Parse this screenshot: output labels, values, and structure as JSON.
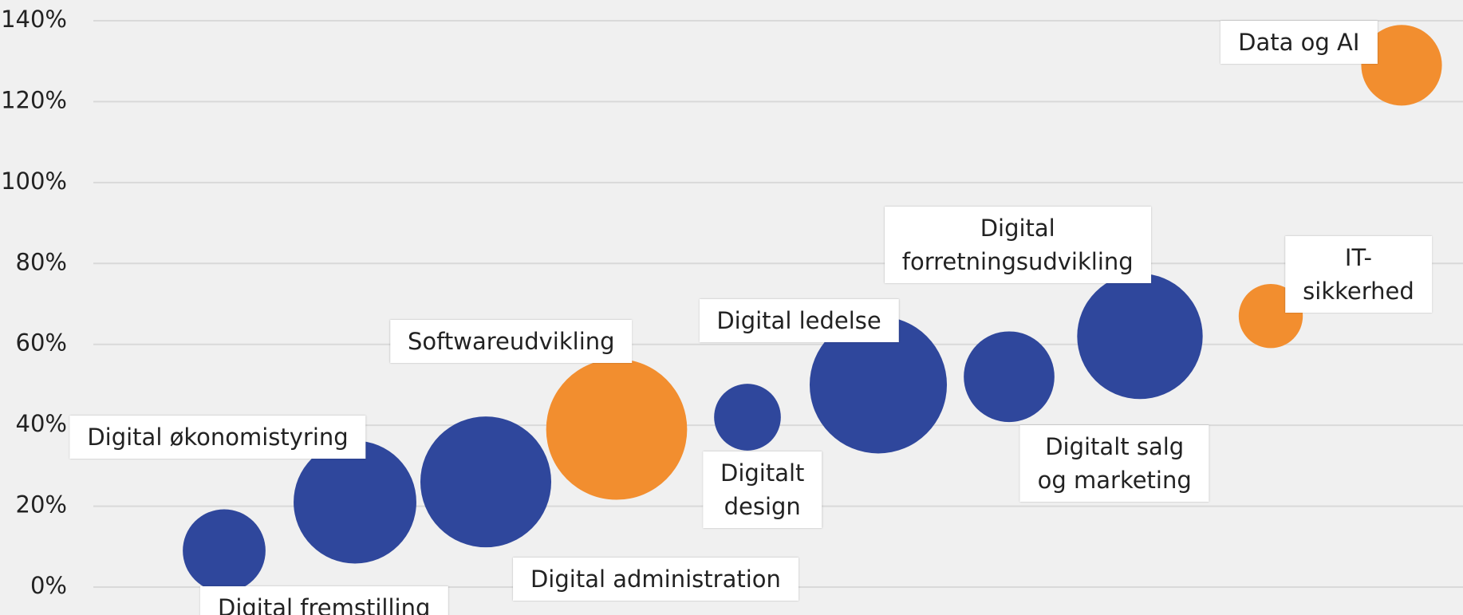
{
  "chart_data": {
    "type": "bubble",
    "categories": [
      "Digital fremstilling",
      "Digital økonomistyring",
      "Digital administration",
      "Softwareudvikling",
      "Digitalt\ndesign",
      "Digital ledelse",
      "Digitalt salg\nog marketing",
      "Digital\nforretningsudvikling",
      "IT-sikkerhed",
      "Data og AI"
    ],
    "values": [
      9,
      21,
      26,
      39,
      42,
      50,
      52,
      62,
      67,
      129
    ],
    "sizes": [
      20,
      44,
      50,
      58,
      13,
      55,
      24,
      46,
      12,
      19
    ],
    "colors": [
      "#2f479c",
      "#2f479c",
      "#2f479c",
      "#f28e2f",
      "#2f479c",
      "#2f479c",
      "#2f479c",
      "#2f479c",
      "#f28e2f",
      "#f28e2f"
    ],
    "ylim": [
      0,
      140
    ],
    "yticks": [
      {
        "value": 0,
        "label": "0%"
      },
      {
        "value": 20,
        "label": "20%"
      },
      {
        "value": 40,
        "label": "40%"
      },
      {
        "value": 60,
        "label": "60%"
      },
      {
        "value": 80,
        "label": "80%"
      },
      {
        "value": 100,
        "label": "100%"
      },
      {
        "value": 120,
        "label": "120%"
      },
      {
        "value": 140,
        "label": "140%"
      }
    ],
    "grid": true
  }
}
